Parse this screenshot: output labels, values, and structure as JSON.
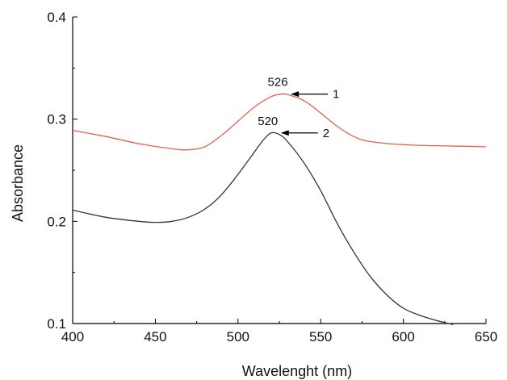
{
  "chart_data": {
    "type": "line",
    "xlabel": "Wavelenght (nm)",
    "ylabel": "Absorbance",
    "xlim": [
      400,
      650
    ],
    "ylim": [
      0.1,
      0.4
    ],
    "x_ticks": [
      400,
      450,
      500,
      550,
      600,
      650
    ],
    "y_ticks": [
      0.1,
      0.2,
      0.3,
      0.4
    ],
    "y_tick_labels": [
      "0.1",
      "0.2",
      "0.3",
      "0.4"
    ],
    "grid": false,
    "series": [
      {
        "color": "#e0604f",
        "x": [
          400,
          420,
          440,
          460,
          470,
          480,
          490,
          500,
          510,
          520,
          526,
          530,
          540,
          550,
          560,
          570,
          580,
          600,
          620,
          650
        ],
        "y": [
          0.289,
          0.283,
          0.276,
          0.271,
          0.27,
          0.273,
          0.284,
          0.298,
          0.312,
          0.322,
          0.3245,
          0.324,
          0.318,
          0.306,
          0.293,
          0.283,
          0.278,
          0.275,
          0.274,
          0.273
        ]
      },
      {
        "color": "#333333",
        "x": [
          400,
          420,
          440,
          450,
          460,
          470,
          480,
          490,
          500,
          510,
          515,
          520,
          525,
          530,
          540,
          550,
          560,
          570,
          580,
          590,
          600,
          610,
          620,
          630
        ],
        "y": [
          0.211,
          0.204,
          0.2,
          0.199,
          0.2,
          0.204,
          0.212,
          0.226,
          0.246,
          0.268,
          0.279,
          0.2865,
          0.285,
          0.278,
          0.257,
          0.23,
          0.198,
          0.17,
          0.146,
          0.128,
          0.115,
          0.108,
          0.103,
          0.099
        ]
      }
    ],
    "annotations": [
      {
        "peak_label": "526",
        "curve_label": "1",
        "peak_x": 526,
        "peak_y": 0.3245
      },
      {
        "peak_label": "520",
        "curve_label": "2",
        "peak_x": 520,
        "peak_y": 0.2865
      }
    ]
  }
}
